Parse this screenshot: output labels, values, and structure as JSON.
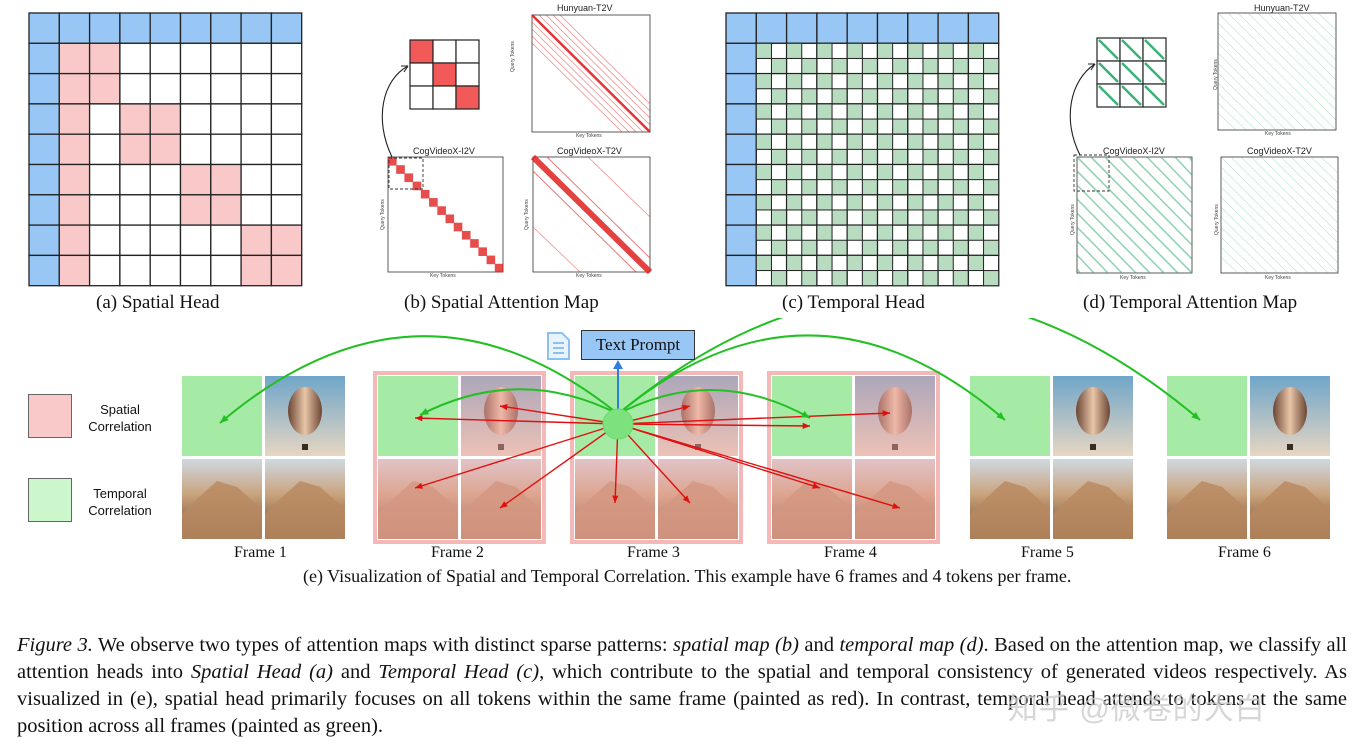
{
  "panels": {
    "a": {
      "caption": "(a) Spatial Head"
    },
    "b": {
      "caption": "(b) Spatial Attention Map",
      "maps": [
        {
          "title": "Hunyuan-T2V"
        },
        {
          "title": "CogVideoX-I2V"
        },
        {
          "title": "CogVideoX-T2V"
        }
      ],
      "query_label": "Query Tokens",
      "key_label": "Key Tokens"
    },
    "c": {
      "caption": "(c) Temporal Head"
    },
    "d": {
      "caption": "(d) Temporal Attention Map",
      "maps": [
        {
          "title": "Hunyuan-T2V"
        },
        {
          "title": "CogVideoX-I2V"
        },
        {
          "title": "CogVideoX-T2V"
        }
      ],
      "query_label": "Query Tokens",
      "key_label": "Key Tokens"
    }
  },
  "legend": {
    "spatial": "Spatial\nCorrelation",
    "temporal": "Temporal\nCorrelation",
    "spatial_color": "#f9c8c8",
    "temporal_color": "#ccf7cc"
  },
  "text_prompt": "Text Prompt",
  "frames": [
    "Frame 1",
    "Frame 2",
    "Frame 3",
    "Frame 4",
    "Frame 5",
    "Frame 6"
  ],
  "panel_e_caption": "(e) Visualization of Spatial and Temporal Correlation. This example have 6 frames and 4 tokens per frame.",
  "figure_caption": {
    "label": "Figure 3.",
    "s1": " We observe two types of attention maps with distinct sparse patterns: ",
    "spatial_map": "spatial map (b)",
    "and": " and ",
    "temporal_map": "temporal map (d)",
    "s2": ". Based on the attention map, we classify all attention heads into ",
    "spatial_head": "Spatial Head (a)",
    "and2": " and ",
    "temporal_head": "Temporal Head (c)",
    "s3": ", which contribute to the spatial and temporal consistency of generated videos respectively. As visualized in (e), spatial head primarily focuses on all tokens within the same frame (painted as red). In contrast, temporal head attends to tokens at the same position across all frames (painted as green)."
  },
  "watermark": "知乎 @微卷的大白",
  "colors": {
    "header_blue": "#99c7f5",
    "pink": "#f9c8c8",
    "green_cell": "#b8dcc0",
    "red_arrow": "#e01010",
    "green_arrow": "#22c022",
    "node": "#7de27d"
  }
}
